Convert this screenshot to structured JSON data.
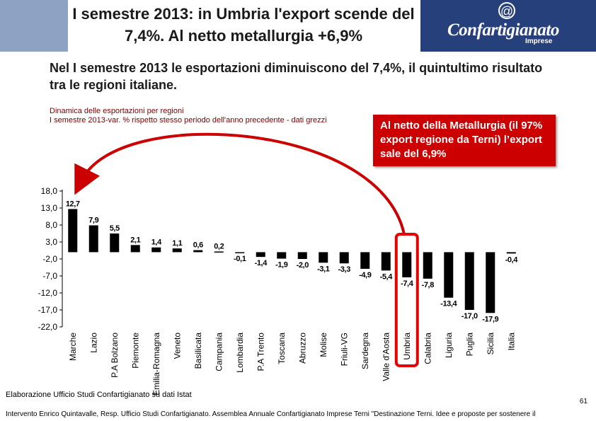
{
  "header": {
    "title": "I semestre 2013: in Umbria l'export scende del 7,4%. Al netto metallurgia +6,9%",
    "logo_text": "Confartigianato",
    "logo_sub": "Imprese",
    "logo_mark": "@"
  },
  "subtitle": "Nel I semestre 2013 le esportazioni diminuiscono del 7,4%, il quintultimo risultato tra le regioni italiane.",
  "caption_line1": "Dinamica delle esportazioni per regioni",
  "caption_line2": "I semestre 2013-var. % rispetto stesso periodo dell'anno precedente - dati grezzi",
  "callout": "Al netto della Metallurgia  (il 97% export regione da Terni) l’export sale del 6,9%",
  "source": "Elaborazione Ufficio Studi Confartigianato su dati Istat",
  "page_number": "61",
  "footer": "Intervento Enrico Quintavalle, Resp. Ufficio Studi Confartigianato. Assemblea Annuale Confartigianato Imprese Terni \"Destinazione Terni. Idee e proposte per sostenere il",
  "colors": {
    "bar": "#000000",
    "highlight": "#e60000",
    "arrow": "#cc0000",
    "callout_bg": "#cc0000",
    "logo_bg": "#26407b"
  },
  "chart_data": {
    "type": "bar",
    "categories": [
      "Marche",
      "Lazio",
      "P.A Bolzano",
      "Piemonte",
      "Emilia-Romagna",
      "Veneto",
      "Basilicata",
      "Campania",
      "Lombardia",
      "P.A Trento",
      "Toscana",
      "Abruzzo",
      "Molise",
      "Friuli-VG",
      "Sardegna",
      "Valle d'Aosta",
      "Umbria",
      "Calabria",
      "Liguria",
      "Puglia",
      "Sicilia",
      "Italia"
    ],
    "values": [
      12.7,
      7.9,
      5.5,
      2.1,
      1.4,
      1.1,
      0.6,
      0.2,
      -0.1,
      -1.4,
      -1.9,
      -2.0,
      -3.1,
      -3.3,
      -4.9,
      -5.4,
      -7.4,
      -7.8,
      -13.4,
      -17.0,
      -17.9,
      -0.4
    ],
    "value_labels": [
      "12,7",
      "7,9",
      "5,5",
      "2,1",
      "1,4",
      "1,1",
      "0,6",
      "0,2",
      "-0,1",
      "-1,4",
      "-1,9",
      "-2,0",
      "-3,1",
      "-3,3",
      "-4,9",
      "-5,4",
      "-7,4",
      "-7,8",
      "-13,4",
      "-17,0",
      "-17,9",
      "-0,4"
    ],
    "yticks": [
      "18,0",
      "13,0",
      "8,0",
      "3,0",
      "-2,0",
      "-7,0",
      "-12,0",
      "-17,0",
      "-22,0"
    ],
    "ytick_values": [
      18,
      13,
      8,
      3,
      -2,
      -7,
      -12,
      -17,
      -22
    ],
    "ylim": [
      -22,
      18
    ],
    "highlight": "Umbria",
    "grid": false,
    "legend": "none",
    "title": "",
    "xlabel": "",
    "ylabel": ""
  }
}
